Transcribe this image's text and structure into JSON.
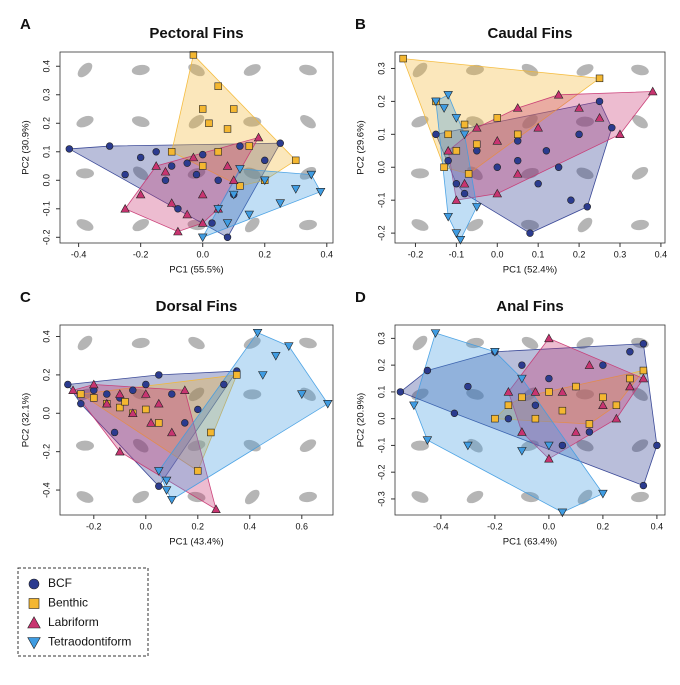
{
  "chart_data": [
    {
      "type": "scatter",
      "label": "A",
      "title": "Pectoral Fins",
      "x_label": "PC1 (55.5%)",
      "y_label": "PC2 (30.9%)",
      "xlim": [
        -0.46,
        0.42
      ],
      "xticks": [
        -0.4,
        -0.2,
        {
          "value": 0,
          "label": "0.0"
        },
        0.2,
        0.4
      ],
      "ylim": [
        -0.22,
        0.45
      ],
      "yticks": [
        -0.2,
        -0.1,
        {
          "value": 0,
          "label": "0.0"
        },
        0.1,
        0.2,
        0.3,
        0.4
      ],
      "series": [
        {
          "name": "BCF",
          "color": "#2b3b8f",
          "marker": "circle",
          "x": [
            -0.43,
            -0.3,
            -0.25,
            -0.2,
            -0.15,
            -0.1,
            -0.05,
            0,
            0.05,
            0.1,
            0.12,
            -0.08,
            -0.02,
            0.03,
            0.08,
            -0.12,
            0.2,
            0.25
          ],
          "values": [
            0.11,
            0.12,
            0.02,
            0.08,
            0.1,
            0.05,
            0.06,
            0.09,
            0.0,
            -0.05,
            0.12,
            -0.1,
            0.02,
            -0.15,
            -0.2,
            0.0,
            0.07,
            0.13
          ]
        },
        {
          "name": "Benthic",
          "color": "#f4b731",
          "marker": "square",
          "x": [
            -0.03,
            0.05,
            0.0,
            0.02,
            0.08,
            0.1,
            0.15,
            -0.1,
            0.0,
            0.2,
            0.05,
            0.12,
            0.3
          ],
          "values": [
            0.44,
            0.33,
            0.25,
            0.2,
            0.18,
            0.25,
            0.12,
            0.1,
            0.05,
            0.0,
            0.1,
            -0.02,
            0.07
          ]
        },
        {
          "name": "Labriform",
          "color": "#c83470",
          "marker": "triangle",
          "x": [
            -0.25,
            -0.2,
            -0.15,
            -0.1,
            -0.05,
            0,
            0.05,
            0.1,
            0.18,
            -0.12,
            -0.08,
            0.0,
            0.08,
            -0.03
          ],
          "values": [
            -0.1,
            -0.05,
            0.05,
            -0.08,
            -0.12,
            -0.15,
            -0.1,
            0.0,
            0.15,
            0.03,
            -0.18,
            -0.05,
            0.05,
            0.08
          ]
        },
        {
          "name": "Tetraodontiform",
          "color": "#3f9ce2",
          "marker": "triangle-down",
          "x": [
            0.0,
            0.05,
            0.1,
            0.15,
            0.2,
            0.25,
            0.3,
            0.35,
            0.38,
            0.12,
            0.08
          ],
          "values": [
            -0.2,
            -0.1,
            -0.05,
            -0.12,
            0.0,
            -0.08,
            -0.03,
            0.02,
            -0.04,
            0.04,
            -0.15
          ]
        }
      ]
    },
    {
      "type": "scatter",
      "label": "B",
      "title": "Caudal Fins",
      "x_label": "PC1 (52.4%)",
      "y_label": "PC2 (29.6%)",
      "xlim": [
        -0.25,
        0.41
      ],
      "xticks": [
        -0.2,
        -0.1,
        {
          "value": 0,
          "label": "0.0"
        },
        0.1,
        0.2,
        0.3,
        0.4
      ],
      "ylim": [
        -0.23,
        0.35
      ],
      "yticks": [
        -0.2,
        -0.1,
        {
          "value": 0,
          "label": "0.0"
        },
        0.1,
        0.2,
        0.3
      ],
      "series": [
        {
          "name": "BCF",
          "color": "#2b3b8f",
          "marker": "circle",
          "x": [
            -0.15,
            -0.12,
            -0.1,
            -0.05,
            0,
            0.05,
            0.1,
            0.15,
            0.2,
            0.22,
            0.25,
            0.28,
            0.08,
            -0.08,
            0.12,
            0.18,
            0.05
          ],
          "values": [
            0.1,
            0.02,
            -0.05,
            0.05,
            0.0,
            0.08,
            -0.05,
            0.0,
            0.1,
            -0.12,
            0.2,
            0.12,
            -0.2,
            -0.08,
            0.05,
            -0.1,
            0.02
          ]
        },
        {
          "name": "Benthic",
          "color": "#f4b731",
          "marker": "square",
          "x": [
            -0.23,
            -0.15,
            -0.12,
            -0.1,
            -0.08,
            -0.05,
            0,
            0.05,
            0.25,
            -0.13,
            -0.07
          ],
          "values": [
            0.33,
            0.2,
            0.1,
            0.05,
            0.13,
            0.07,
            0.15,
            0.1,
            0.27,
            0.0,
            -0.02
          ]
        },
        {
          "name": "Labriform",
          "color": "#c83470",
          "marker": "triangle",
          "x": [
            -0.12,
            -0.08,
            -0.05,
            0,
            0.05,
            0.1,
            0.15,
            0.2,
            0.25,
            0.3,
            0.38,
            0.05,
            0.0,
            -0.1
          ],
          "values": [
            0.05,
            -0.05,
            0.12,
            0.08,
            0.18,
            0.12,
            0.22,
            0.18,
            0.15,
            0.1,
            0.23,
            -0.02,
            -0.08,
            -0.1
          ]
        },
        {
          "name": "Tetraodontiform",
          "color": "#3f9ce2",
          "marker": "triangle-down",
          "x": [
            -0.15,
            -0.12,
            -0.1,
            -0.08,
            -0.1,
            -0.12,
            -0.05,
            -0.13,
            -0.09
          ],
          "values": [
            0.2,
            0.22,
            0.15,
            0.1,
            -0.2,
            -0.15,
            -0.12,
            0.18,
            -0.22
          ]
        }
      ]
    },
    {
      "type": "scatter",
      "label": "C",
      "title": "Dorsal Fins",
      "x_label": "PC1 (43.4%)",
      "y_label": "PC2 (32.1%)",
      "xlim": [
        -0.33,
        0.72
      ],
      "xticks": [
        -0.2,
        {
          "value": 0,
          "label": "0.0"
        },
        0.2,
        0.4,
        0.6
      ],
      "ylim": [
        -0.53,
        0.46
      ],
      "yticks": [
        -0.4,
        -0.2,
        {
          "value": 0,
          "label": "0.0"
        },
        0.2,
        0.4
      ],
      "series": [
        {
          "name": "BCF",
          "color": "#2b3b8f",
          "marker": "circle",
          "x": [
            -0.3,
            -0.25,
            -0.2,
            -0.15,
            -0.1,
            -0.05,
            0,
            0.05,
            0.1,
            0.15,
            0.2,
            0.3,
            0.35,
            0.05,
            -0.12
          ],
          "values": [
            0.15,
            0.05,
            0.12,
            0.1,
            0.08,
            0.12,
            0.15,
            0.2,
            0.1,
            -0.05,
            0.02,
            0.15,
            0.22,
            -0.38,
            -0.1
          ]
        },
        {
          "name": "Benthic",
          "color": "#f4b731",
          "marker": "square",
          "x": [
            -0.25,
            -0.2,
            -0.15,
            -0.1,
            -0.05,
            0,
            0.05,
            0.2,
            0.25,
            0.35,
            -0.08
          ],
          "values": [
            0.1,
            0.08,
            0.05,
            0.03,
            0.0,
            0.02,
            -0.05,
            -0.3,
            -0.1,
            0.2,
            0.06
          ]
        },
        {
          "name": "Labriform",
          "color": "#c83470",
          "marker": "triangle",
          "x": [
            -0.28,
            -0.2,
            -0.15,
            -0.1,
            -0.05,
            0,
            0.05,
            0.1,
            0.15,
            0.27,
            -0.1,
            0.02
          ],
          "values": [
            0.12,
            0.15,
            0.05,
            -0.2,
            0.0,
            0.1,
            0.05,
            -0.1,
            0.12,
            -0.5,
            0.1,
            -0.05
          ]
        },
        {
          "name": "Tetraodontiform",
          "color": "#3f9ce2",
          "marker": "triangle-down",
          "x": [
            0.05,
            0.08,
            0.1,
            0.43,
            0.5,
            0.6,
            0.7,
            0.45,
            0.55,
            0.08
          ],
          "values": [
            -0.3,
            -0.4,
            -0.45,
            0.42,
            0.3,
            0.1,
            0.05,
            0.2,
            0.35,
            -0.35
          ]
        }
      ]
    },
    {
      "type": "scatter",
      "label": "D",
      "title": "Anal Fins",
      "x_label": "PC1 (63.4%)",
      "y_label": "PC2 (20.9%)",
      "xlim": [
        -0.57,
        0.43
      ],
      "xticks": [
        -0.4,
        -0.2,
        {
          "value": 0,
          "label": "0.0"
        },
        0.2,
        0.4
      ],
      "ylim": [
        -0.36,
        0.35
      ],
      "yticks": [
        -0.3,
        -0.2,
        -0.1,
        {
          "value": 0,
          "label": "0.0"
        },
        0.1,
        0.2,
        0.3
      ],
      "series": [
        {
          "name": "BCF",
          "color": "#2b3b8f",
          "marker": "circle",
          "x": [
            -0.55,
            -0.45,
            -0.35,
            -0.3,
            -0.2,
            -0.1,
            0,
            0.1,
            0.2,
            0.3,
            0.35,
            0.4,
            0.35,
            0.05,
            -0.05,
            0.15,
            -0.15
          ],
          "values": [
            0.1,
            0.18,
            0.02,
            0.12,
            0.25,
            0.2,
            0.15,
            0.12,
            0.2,
            0.25,
            0.28,
            -0.1,
            -0.25,
            -0.1,
            0.05,
            -0.05,
            0.0
          ]
        },
        {
          "name": "Benthic",
          "color": "#f4b731",
          "marker": "square",
          "x": [
            -0.15,
            -0.1,
            -0.05,
            0,
            0.05,
            0.1,
            0.15,
            0.2,
            0.25,
            0.3,
            0.35,
            -0.2
          ],
          "values": [
            0.05,
            0.08,
            0.0,
            0.1,
            0.03,
            0.12,
            -0.02,
            0.08,
            0.05,
            0.15,
            0.18,
            0.0
          ]
        },
        {
          "name": "Labriform",
          "color": "#c83470",
          "marker": "triangle",
          "x": [
            -0.1,
            -0.05,
            0,
            0.05,
            0.1,
            0.15,
            0.2,
            0.25,
            0.3,
            0.35,
            -0.15,
            0.0
          ],
          "values": [
            -0.05,
            0.1,
            0.3,
            0.1,
            -0.05,
            0.2,
            0.05,
            0.0,
            0.12,
            0.15,
            0.1,
            -0.15
          ]
        },
        {
          "name": "Tetraodontiform",
          "color": "#3f9ce2",
          "marker": "triangle-down",
          "x": [
            -0.42,
            -0.5,
            -0.45,
            -0.3,
            -0.2,
            -0.1,
            0.0,
            0.05,
            0.2,
            -0.1
          ],
          "values": [
            0.32,
            0.05,
            -0.08,
            -0.1,
            0.25,
            -0.12,
            -0.1,
            -0.35,
            -0.28,
            0.15
          ]
        }
      ]
    }
  ]
}
